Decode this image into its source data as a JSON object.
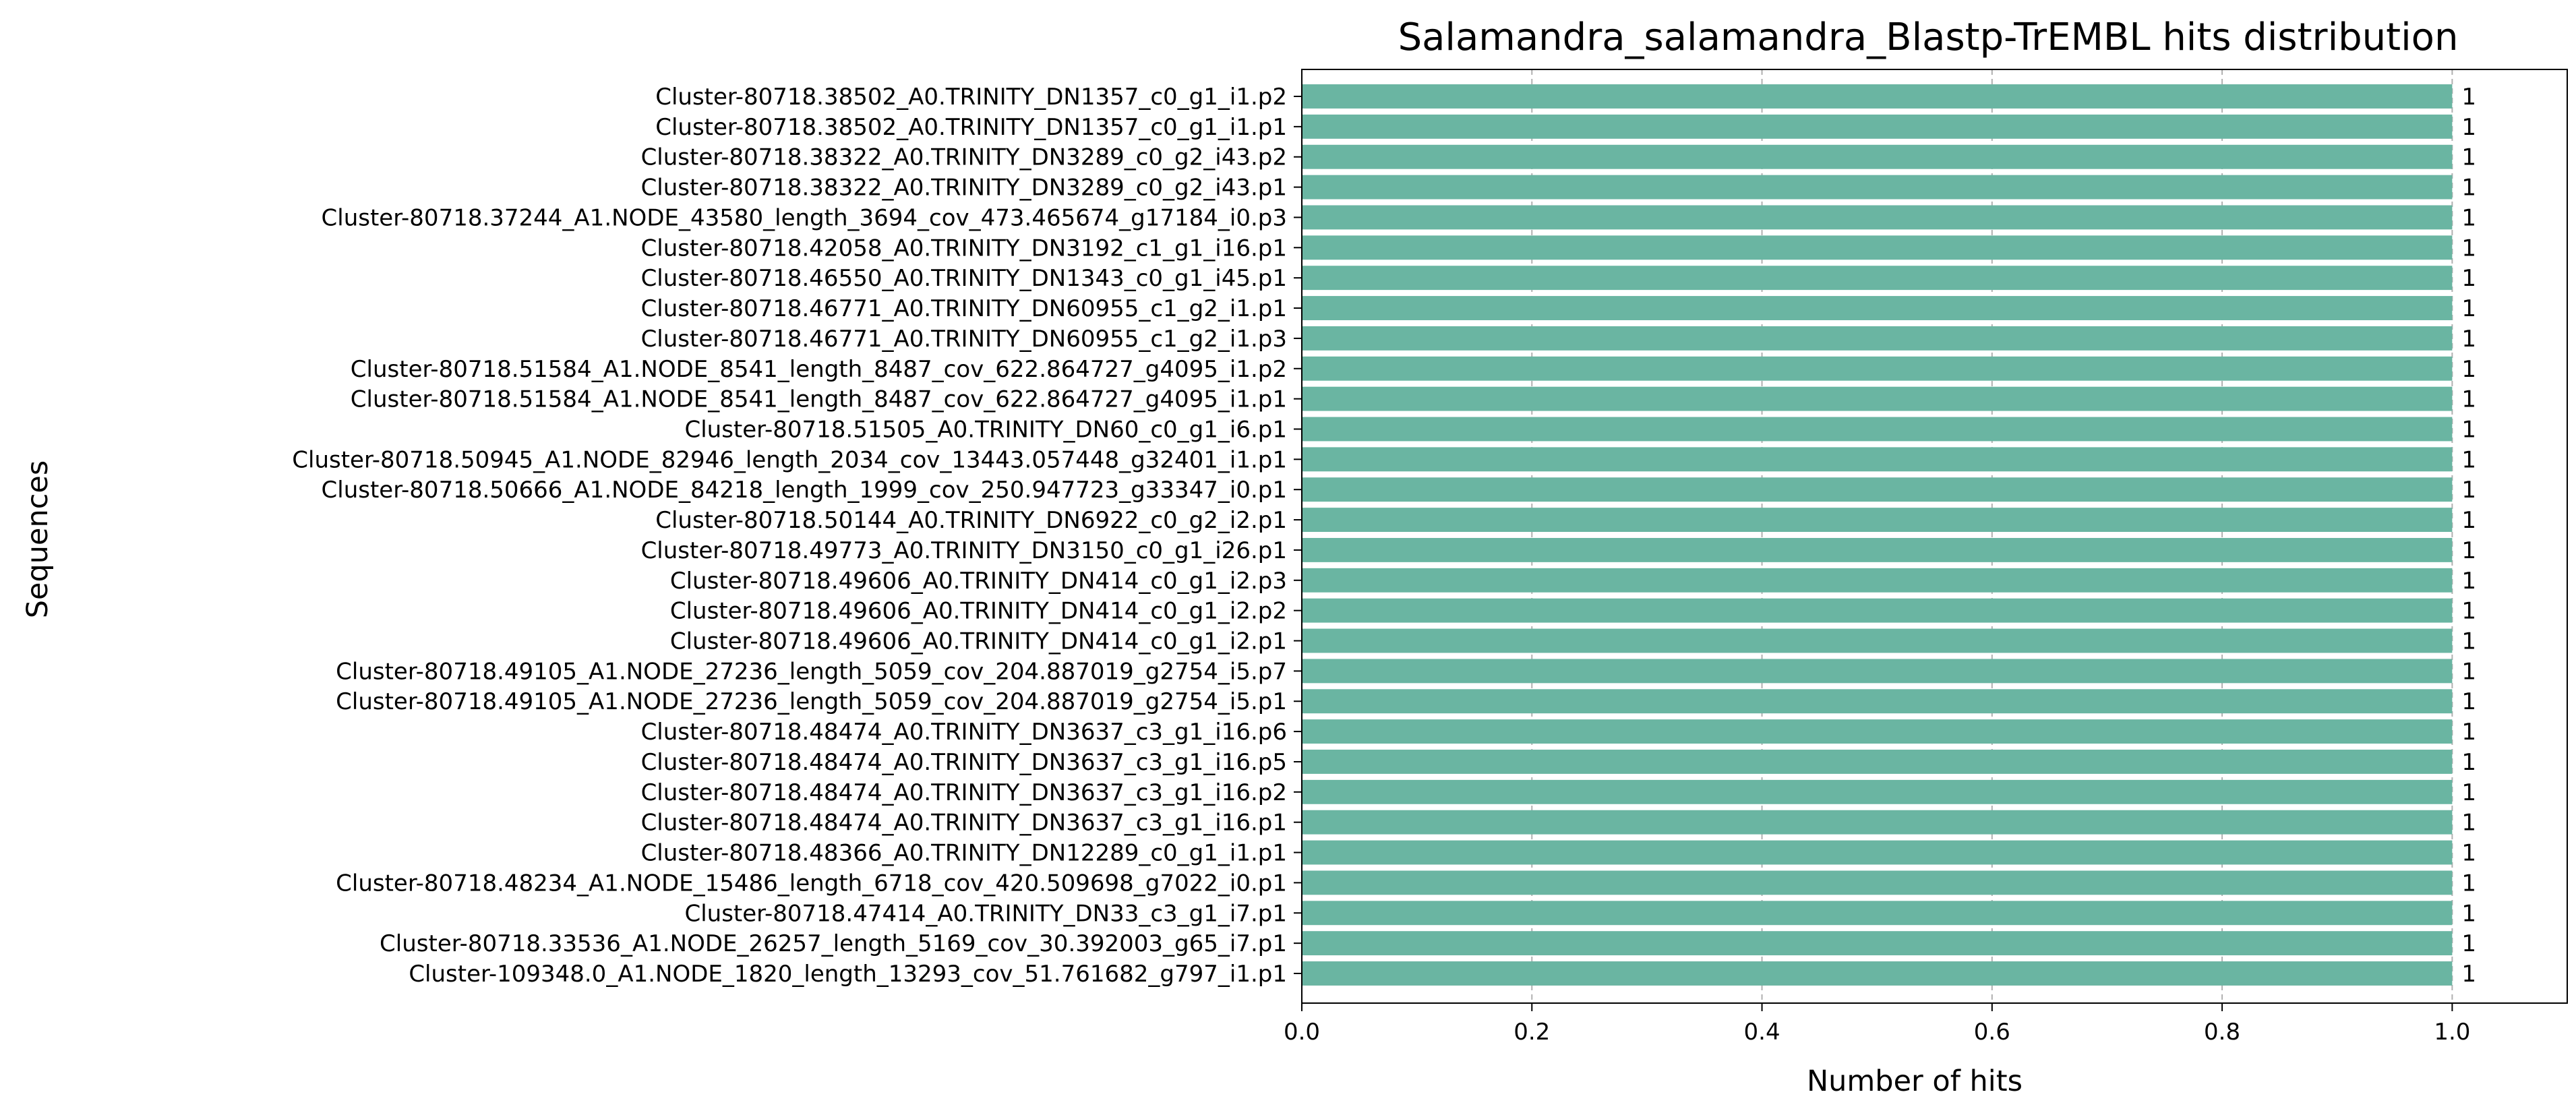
{
  "chart_data": {
    "type": "bar",
    "orientation": "horizontal",
    "title": "Salamandra_salamandra_Blastp-TrEMBL hits distribution",
    "xlabel": "Number of hits",
    "ylabel": "Sequences",
    "xlim": [
      0,
      1.1
    ],
    "xticks": [
      "0.0",
      "0.2",
      "0.4",
      "0.6",
      "0.8",
      "1.0"
    ],
    "grid": "vertical dashed",
    "colors": {
      "bar": "#6ab5a2",
      "grid": "#b0b0b0"
    },
    "categories": [
      "Cluster-80718.38502_A0.TRINITY_DN1357_c0_g1_i1.p2",
      "Cluster-80718.38502_A0.TRINITY_DN1357_c0_g1_i1.p1",
      "Cluster-80718.38322_A0.TRINITY_DN3289_c0_g2_i43.p2",
      "Cluster-80718.38322_A0.TRINITY_DN3289_c0_g2_i43.p1",
      "Cluster-80718.37244_A1.NODE_43580_length_3694_cov_473.465674_g17184_i0.p3",
      "Cluster-80718.42058_A0.TRINITY_DN3192_c1_g1_i16.p1",
      "Cluster-80718.46550_A0.TRINITY_DN1343_c0_g1_i45.p1",
      "Cluster-80718.46771_A0.TRINITY_DN60955_c1_g2_i1.p1",
      "Cluster-80718.46771_A0.TRINITY_DN60955_c1_g2_i1.p3",
      "Cluster-80718.51584_A1.NODE_8541_length_8487_cov_622.864727_g4095_i1.p2",
      "Cluster-80718.51584_A1.NODE_8541_length_8487_cov_622.864727_g4095_i1.p1",
      "Cluster-80718.51505_A0.TRINITY_DN60_c0_g1_i6.p1",
      "Cluster-80718.50945_A1.NODE_82946_length_2034_cov_13443.057448_g32401_i1.p1",
      "Cluster-80718.50666_A1.NODE_84218_length_1999_cov_250.947723_g33347_i0.p1",
      "Cluster-80718.50144_A0.TRINITY_DN6922_c0_g2_i2.p1",
      "Cluster-80718.49773_A0.TRINITY_DN3150_c0_g1_i26.p1",
      "Cluster-80718.49606_A0.TRINITY_DN414_c0_g1_i2.p3",
      "Cluster-80718.49606_A0.TRINITY_DN414_c0_g1_i2.p2",
      "Cluster-80718.49606_A0.TRINITY_DN414_c0_g1_i2.p1",
      "Cluster-80718.49105_A1.NODE_27236_length_5059_cov_204.887019_g2754_i5.p7",
      "Cluster-80718.49105_A1.NODE_27236_length_5059_cov_204.887019_g2754_i5.p1",
      "Cluster-80718.48474_A0.TRINITY_DN3637_c3_g1_i16.p6",
      "Cluster-80718.48474_A0.TRINITY_DN3637_c3_g1_i16.p5",
      "Cluster-80718.48474_A0.TRINITY_DN3637_c3_g1_i16.p2",
      "Cluster-80718.48474_A0.TRINITY_DN3637_c3_g1_i16.p1",
      "Cluster-80718.48366_A0.TRINITY_DN12289_c0_g1_i1.p1",
      "Cluster-80718.48234_A1.NODE_15486_length_6718_cov_420.509698_g7022_i0.p1",
      "Cluster-80718.47414_A0.TRINITY_DN33_c3_g1_i7.p1",
      "Cluster-80718.33536_A1.NODE_26257_length_5169_cov_30.392003_g65_i7.p1",
      "Cluster-109348.0_A1.NODE_1820_length_13293_cov_51.761682_g797_i1.p1"
    ],
    "values": [
      1,
      1,
      1,
      1,
      1,
      1,
      1,
      1,
      1,
      1,
      1,
      1,
      1,
      1,
      1,
      1,
      1,
      1,
      1,
      1,
      1,
      1,
      1,
      1,
      1,
      1,
      1,
      1,
      1,
      1
    ]
  }
}
